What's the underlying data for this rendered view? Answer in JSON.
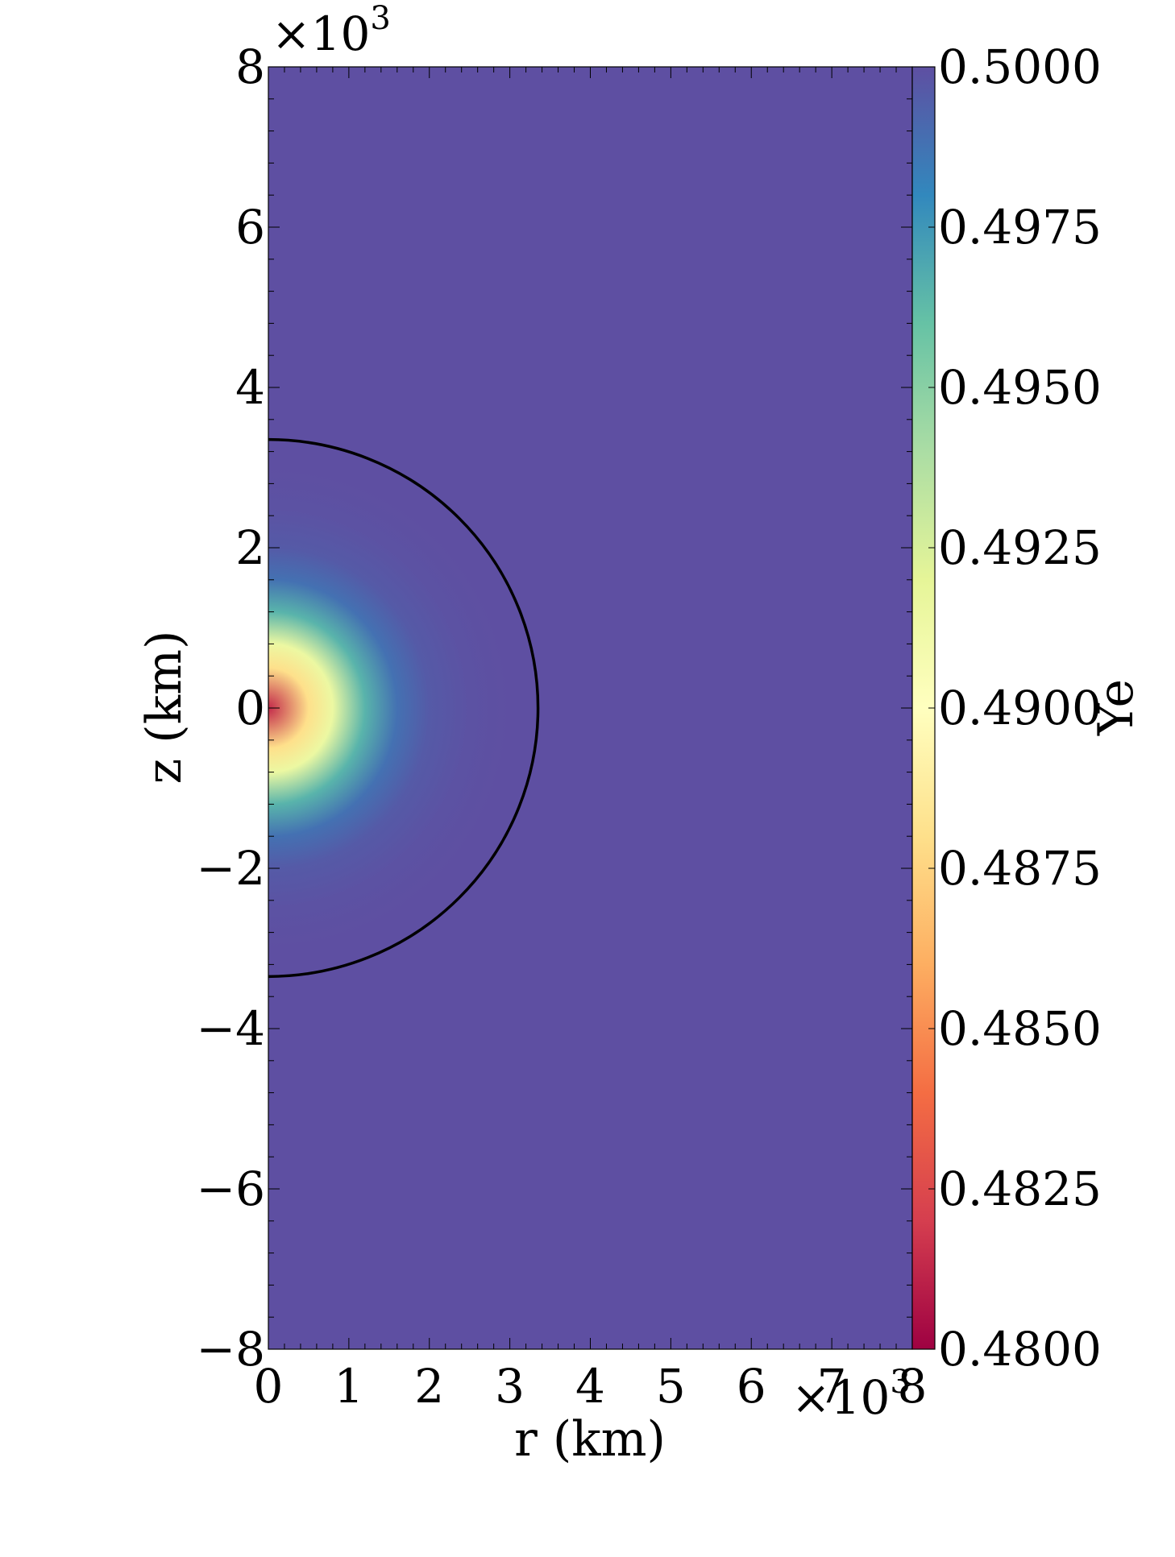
{
  "chart_data": {
    "type": "heatmap",
    "title": "",
    "xlabel": "r  (km)",
    "ylabel": "z  (km)",
    "xlim": [
      0,
      8000
    ],
    "ylim": [
      -8000,
      8000
    ],
    "x_multiplier_label": "×10",
    "x_multiplier_exp": "3",
    "y_multiplier_label": "×10",
    "y_multiplier_exp": "3",
    "x_ticks": [
      0,
      1000,
      2000,
      3000,
      4000,
      5000,
      6000,
      7000,
      8000
    ],
    "x_tick_labels": [
      "0",
      "1",
      "2",
      "3",
      "4",
      "5",
      "6",
      "7",
      "8"
    ],
    "y_ticks": [
      -8000,
      -6000,
      -4000,
      -2000,
      0,
      2000,
      4000,
      6000,
      8000
    ],
    "y_tick_labels": [
      "−8",
      "−6",
      "−4",
      "−2",
      "0",
      "2",
      "4",
      "6",
      "8"
    ],
    "colorbar": {
      "label": "Ye",
      "range": [
        0.48,
        0.5
      ],
      "ticks": [
        0.48,
        0.4825,
        0.485,
        0.4875,
        0.49,
        0.4925,
        0.495,
        0.4975,
        0.5
      ],
      "tick_labels": [
        "0.4800",
        "0.4825",
        "0.4850",
        "0.4875",
        "0.4900",
        "0.4925",
        "0.4950",
        "0.4975",
        "0.5000"
      ],
      "colormap": "Spectral"
    },
    "field": {
      "description": "Ye is minimum at the origin and rises radially to 0.5",
      "profile_radius_km": [
        0,
        500,
        800,
        1200,
        1600,
        2000,
        2500,
        3000
      ],
      "profile_ye": [
        0.4813,
        0.488,
        0.4915,
        0.4965,
        0.4988,
        0.4996,
        0.4999,
        0.5
      ]
    },
    "contour": {
      "shape": "semicircle",
      "radius_km": 3350,
      "color": "#000000"
    },
    "background_color": "#5e4fa2"
  }
}
